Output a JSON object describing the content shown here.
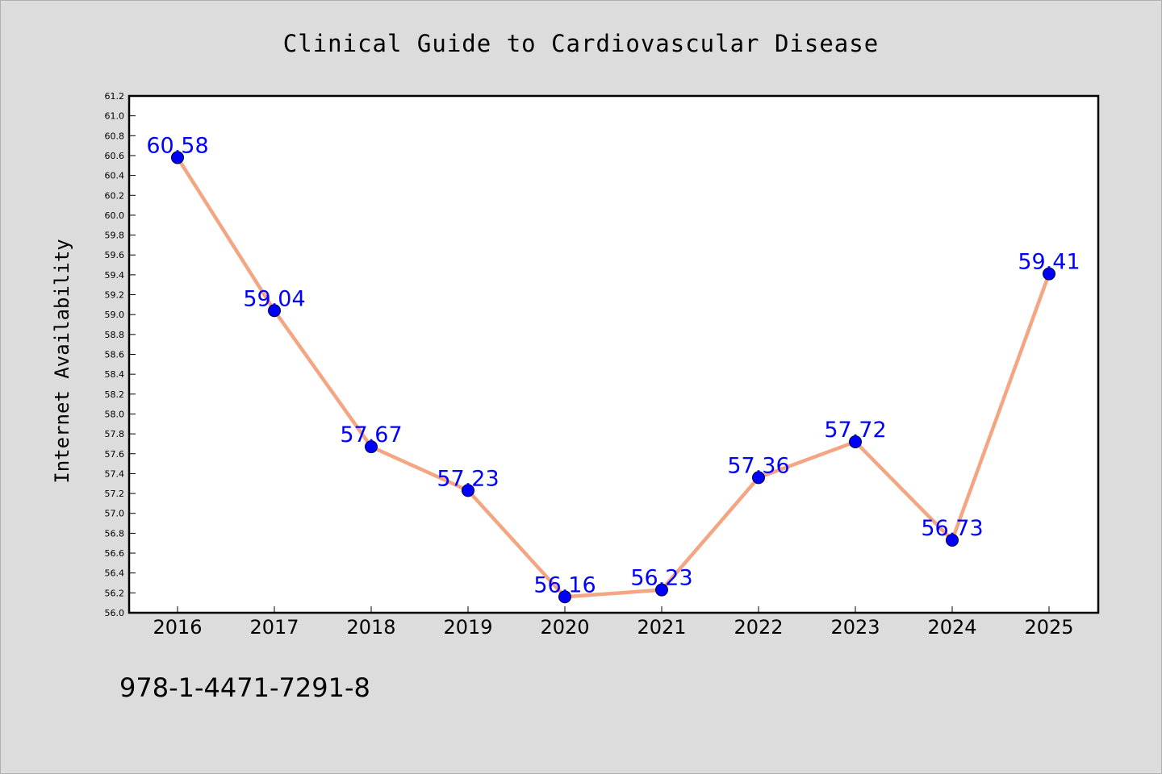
{
  "chart_data": {
    "type": "line",
    "title": "Clinical Guide to Cardiovascular Disease",
    "xlabel": "",
    "ylabel": "Internet Availability",
    "categories": [
      "2016",
      "2017",
      "2018",
      "2019",
      "2020",
      "2021",
      "2022",
      "2023",
      "2024",
      "2025"
    ],
    "series": [
      {
        "values": [
          60.58,
          59.04,
          57.67,
          57.23,
          56.16,
          56.23,
          57.36,
          57.72,
          56.73,
          59.41
        ],
        "labels": [
          "60.58",
          "59.04",
          "57.67",
          "57.23",
          "56.16",
          "56.23",
          "57.36",
          "57.72",
          "56.73",
          "59.41"
        ]
      }
    ],
    "ylim": [
      56.0,
      61.2
    ],
    "yticks": [
      "56.0",
      "56.2",
      "56.4",
      "56.6",
      "56.8",
      "57.0",
      "57.2",
      "57.4",
      "57.6",
      "57.8",
      "58.0",
      "58.2",
      "58.4",
      "58.6",
      "58.8",
      "59.0",
      "59.2",
      "59.4",
      "59.6",
      "59.8",
      "60.0",
      "60.2",
      "60.4",
      "60.6",
      "60.8",
      "61.0",
      "61.2"
    ],
    "grid": false,
    "colors": {
      "line": "#f4a582",
      "marker": "#0000ff",
      "label": "#0000ff",
      "background": "#dcdcdc",
      "plot_bg": "#ffffff"
    }
  },
  "footer": {
    "isbn": "978-1-4471-7291-8"
  }
}
